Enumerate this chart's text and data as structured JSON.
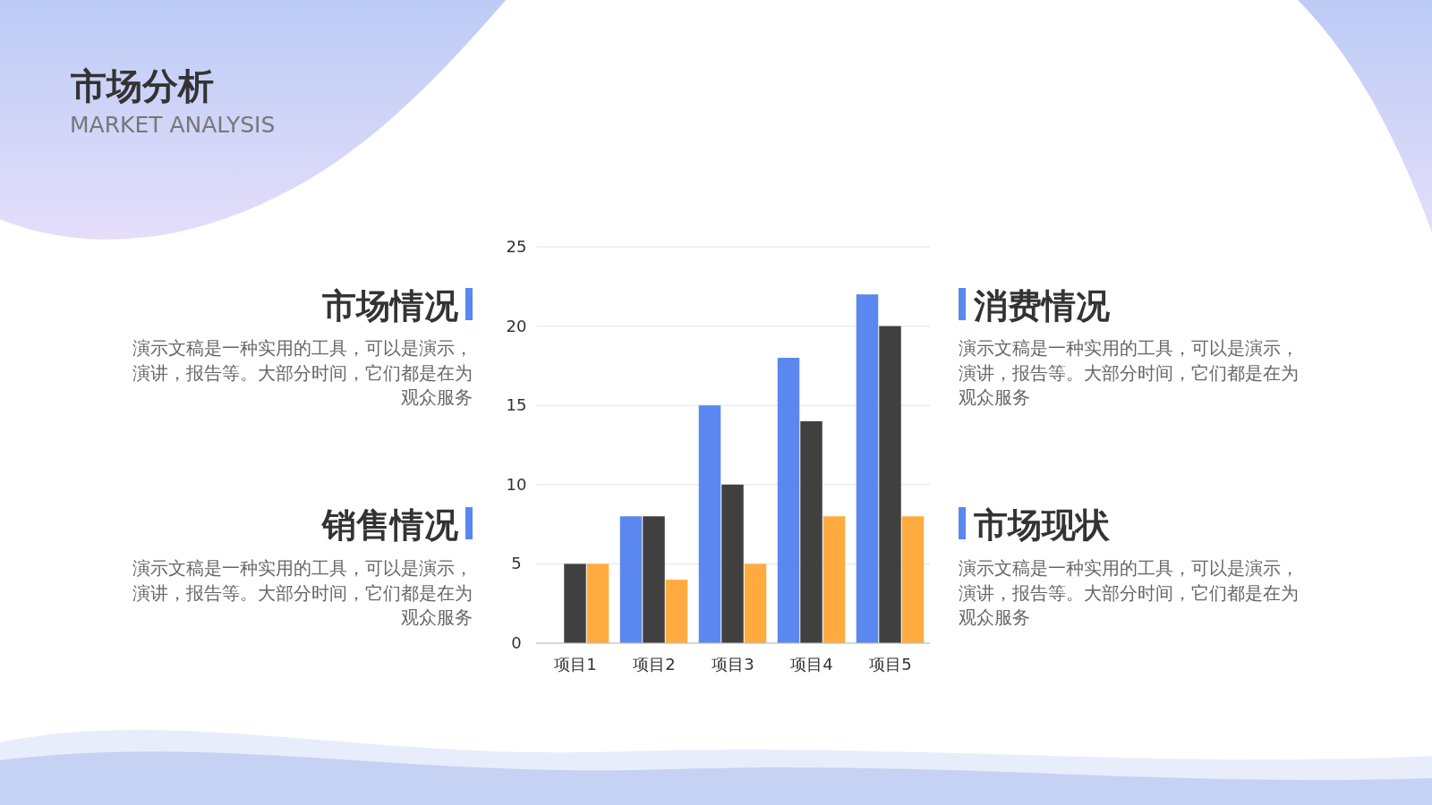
{
  "chart_data": [
    {
      "type": "other",
      "title": "市场分析",
      "subtitle": "MARKET ANALYSIS"
    },
    {
      "type": "bar",
      "categories": [
        "项目1",
        "项目2",
        "项目3",
        "项目4",
        "项目5"
      ],
      "series": [
        {
          "color": "#5b87f0",
          "values": [
            0,
            8,
            15,
            18,
            22
          ]
        },
        {
          "color": "#404040",
          "values": [
            5,
            8,
            10,
            14,
            20
          ]
        },
        {
          "color": "#ffab40",
          "values": [
            5,
            4,
            5,
            8,
            8
          ]
        }
      ],
      "ylim": [
        0,
        25
      ],
      "yticks": [
        0,
        5,
        10,
        15,
        20,
        25
      ],
      "grid": "y"
    },
    {
      "type": "other",
      "title": "市场情况",
      "annotations": [
        "演示文稿是一种实用的工具，可以是演示，",
        "演讲，报告等。大部分时间，它们都是在为",
        "观众服务"
      ]
    },
    {
      "type": "other",
      "title": "消费情况",
      "annotations": [
        "演示文稿是一种实用的工具，可以是演示，",
        "演讲，报告等。大部分时间，它们都是在为",
        "观众服务"
      ]
    },
    {
      "type": "other",
      "title": "销售情况",
      "annotations": [
        "演示文稿是一种实用的工具，可以是演示，",
        "演讲，报告等。大部分时间，它们都是在为",
        "观众服务"
      ]
    },
    {
      "type": "other",
      "title": "市场现状",
      "annotations": [
        "演示文稿是一种实用的工具，可以是演示，",
        "演讲，报告等。大部分时间，它们都是在为",
        "观众服务"
      ]
    }
  ]
}
